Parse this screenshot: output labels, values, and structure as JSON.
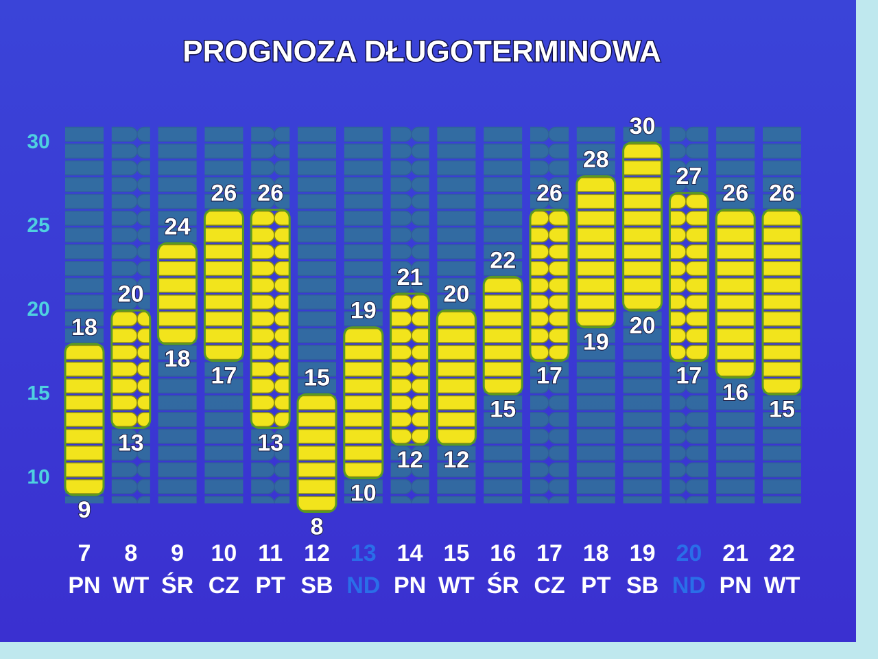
{
  "chart_data": {
    "type": "range-bar",
    "title": "PROGNOZA DŁUGOTERMINOWA",
    "categories": [
      "7",
      "8",
      "9",
      "10",
      "11",
      "12",
      "13",
      "14",
      "15",
      "16",
      "17",
      "18",
      "19",
      "20",
      "21",
      "22"
    ],
    "weekdays": [
      "PN",
      "WT",
      "ŚR",
      "CZ",
      "PT",
      "SB",
      "ND",
      "PN",
      "WT",
      "ŚR",
      "CZ",
      "PT",
      "SB",
      "ND",
      "PN",
      "WT"
    ],
    "label_colors": [
      "#ffffff",
      "#ffffff",
      "#ffffff",
      "#ffffff",
      "#ffffff",
      "#ffffff",
      "#2a6ee8",
      "#ffffff",
      "#ffffff",
      "#ffffff",
      "#ffffff",
      "#ffffff",
      "#ffffff",
      "#2a6ee8",
      "#ffffff",
      "#ffffff"
    ],
    "low": [
      9,
      13,
      18,
      17,
      13,
      8,
      10,
      12,
      12,
      15,
      17,
      19,
      20,
      17,
      16,
      15
    ],
    "high": [
      18,
      20,
      24,
      26,
      26,
      15,
      19,
      21,
      20,
      22,
      26,
      28,
      30,
      27,
      26,
      26
    ],
    "color": "#f2e41c",
    "ylim": [
      7,
      32
    ],
    "yticks": [
      10,
      15,
      20,
      25,
      30
    ]
  }
}
